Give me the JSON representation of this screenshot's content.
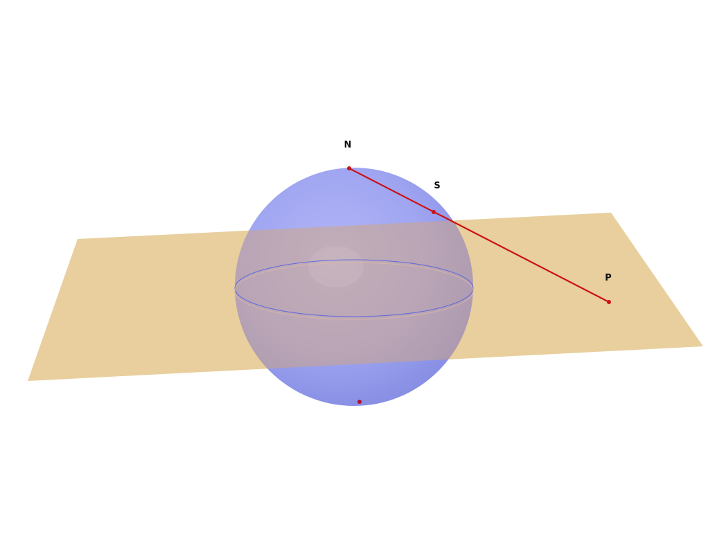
{
  "diagram": {
    "type": "3d-stereographic-projection",
    "points": {
      "north": {
        "label": "N"
      },
      "sphere_point": {
        "label": "S"
      },
      "projection": {
        "label": "P"
      },
      "south": {
        "label": ""
      }
    },
    "colors": {
      "plane": "#e8cf9d",
      "sphere": "#9a9ff0",
      "equator": "#5560e0",
      "segment": "#cc1111",
      "point": "#cc1111"
    }
  }
}
